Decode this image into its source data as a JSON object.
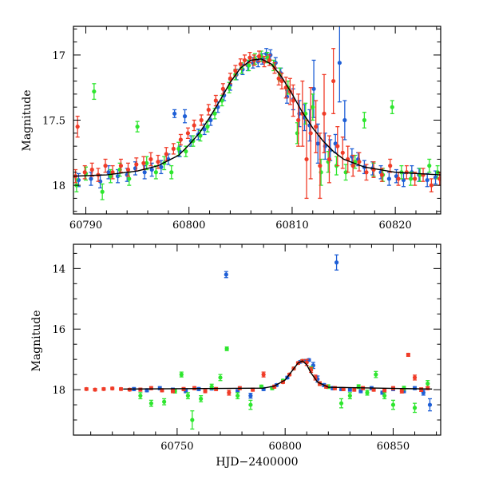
{
  "chart_data": [
    {
      "type": "scatter",
      "panel": "top",
      "ylabel": "Magnitude",
      "xlabel": "",
      "xlim": [
        60788.8,
        60824.4
      ],
      "ylim": [
        18.22,
        16.78
      ],
      "y_inverted": true,
      "x_ticks": [
        60790,
        60800,
        60810,
        60820
      ],
      "x_tick_labels": [
        "60790",
        "60800",
        "60810",
        "60820"
      ],
      "y_ticks": [
        17,
        17.5,
        18
      ],
      "y_tick_labels": [
        "17",
        "17.5",
        "18"
      ],
      "grid": false,
      "legend": "none",
      "model_curve": {
        "color": "#000000",
        "x": [
          60788.8,
          60792,
          60795,
          60797,
          60799,
          60800,
          60801,
          60802,
          60803,
          60804,
          60805,
          60806,
          60807,
          60808,
          60809,
          60810,
          60811,
          60812,
          60813,
          60814,
          60815,
          60817,
          60820,
          60824.4
        ],
        "y": [
          17.93,
          17.92,
          17.89,
          17.85,
          17.77,
          17.69,
          17.6,
          17.48,
          17.35,
          17.21,
          17.1,
          17.04,
          17.03,
          17.07,
          17.17,
          17.3,
          17.44,
          17.56,
          17.66,
          17.74,
          17.8,
          17.86,
          17.9,
          17.92
        ]
      },
      "series": [
        {
          "color": "#1f5fd6",
          "x": [
            60789.3,
            60790.5,
            60791.4,
            60792.2,
            60793.1,
            60794.0,
            60794.8,
            60795.7,
            60796.4,
            60797.3,
            60798.0,
            60798.6,
            60799.1,
            60799.6,
            60800.2,
            60800.9,
            60801.5,
            60802.1,
            60802.8,
            60803.4,
            60804.0,
            60804.6,
            60805.2,
            60805.7,
            60806.2,
            60806.7,
            60807.1,
            60807.5,
            60807.9,
            60808.4,
            60808.9,
            60809.5,
            60810.1,
            60810.7,
            60811.2,
            60811.7,
            60812.1,
            60812.5,
            60813.2,
            60813.7,
            60814.2,
            60814.6,
            60815.1,
            60815.8,
            60816.4,
            60817.0,
            60817.8,
            60818.6,
            60819.4,
            60820.1,
            60820.8,
            60821.6,
            60822.3,
            60823.1,
            60823.9
          ],
          "y": [
            17.96,
            17.95,
            17.97,
            17.9,
            17.93,
            17.92,
            17.87,
            17.9,
            17.88,
            17.86,
            17.8,
            17.45,
            17.74,
            17.47,
            17.66,
            17.61,
            17.57,
            17.5,
            17.4,
            17.31,
            17.23,
            17.15,
            17.11,
            17.08,
            17.06,
            17.05,
            17.03,
            16.99,
            17.0,
            17.06,
            17.14,
            17.32,
            17.34,
            17.45,
            17.48,
            17.54,
            17.26,
            17.68,
            17.7,
            17.73,
            17.68,
            17.06,
            17.5,
            17.78,
            17.8,
            17.86,
            17.87,
            17.9,
            17.95,
            17.93,
            17.96,
            17.9,
            17.92,
            17.96,
            17.94
          ],
          "yerr": [
            0.05,
            0.05,
            0.05,
            0.05,
            0.05,
            0.05,
            0.05,
            0.05,
            0.05,
            0.05,
            0.04,
            0.03,
            0.04,
            0.05,
            0.04,
            0.04,
            0.04,
            0.04,
            0.04,
            0.04,
            0.04,
            0.04,
            0.04,
            0.04,
            0.04,
            0.04,
            0.04,
            0.04,
            0.04,
            0.04,
            0.04,
            0.05,
            0.08,
            0.1,
            0.1,
            0.12,
            0.22,
            0.15,
            0.1,
            0.08,
            0.07,
            0.3,
            0.15,
            0.06,
            0.05,
            0.05,
            0.05,
            0.05,
            0.05,
            0.05,
            0.05,
            0.05,
            0.05,
            0.05,
            0.05
          ]
        },
        {
          "color": "#2ee62e",
          "x": [
            60789.1,
            60790.0,
            60790.8,
            60791.6,
            60792.4,
            60793.3,
            60794.2,
            60795.0,
            60795.9,
            60796.8,
            60797.6,
            60798.3,
            60799.0,
            60799.7,
            60800.4,
            60801.1,
            60801.8,
            60802.5,
            60803.2,
            60803.9,
            60804.5,
            60805.1,
            60805.8,
            60806.4,
            60807.0,
            60807.6,
            60808.2,
            60808.8,
            60809.6,
            60810.5,
            60811.3,
            60812.0,
            60812.8,
            60813.5,
            60814.3,
            60815.2,
            60816.1,
            60817.0,
            60817.9,
            60818.8,
            60819.7,
            60820.6,
            60821.5,
            60822.4,
            60823.3,
            60824.1
          ],
          "y": [
            18.0,
            17.91,
            17.28,
            18.05,
            17.93,
            17.88,
            17.95,
            17.55,
            17.83,
            17.9,
            17.83,
            17.9,
            17.72,
            17.74,
            17.66,
            17.62,
            17.55,
            17.45,
            17.35,
            17.25,
            17.15,
            17.1,
            17.08,
            17.03,
            17.01,
            17.02,
            17.08,
            17.15,
            17.25,
            17.6,
            17.45,
            17.4,
            17.9,
            17.82,
            17.85,
            17.9,
            17.82,
            17.5,
            17.88,
            17.92,
            17.4,
            17.9,
            17.95,
            17.92,
            17.85,
            17.9
          ],
          "yerr": [
            0.05,
            0.05,
            0.06,
            0.06,
            0.05,
            0.05,
            0.05,
            0.04,
            0.05,
            0.05,
            0.05,
            0.05,
            0.05,
            0.04,
            0.04,
            0.04,
            0.04,
            0.04,
            0.04,
            0.04,
            0.04,
            0.04,
            0.04,
            0.04,
            0.04,
            0.04,
            0.04,
            0.05,
            0.05,
            0.08,
            0.08,
            0.1,
            0.1,
            0.08,
            0.07,
            0.06,
            0.05,
            0.06,
            0.05,
            0.05,
            0.05,
            0.05,
            0.05,
            0.05,
            0.05,
            0.05
          ]
        },
        {
          "color": "#f03c28",
          "x": [
            60789.0,
            60789.2,
            60789.9,
            60790.6,
            60791.2,
            60791.9,
            60792.6,
            60793.4,
            60794.1,
            60794.9,
            60795.6,
            60796.3,
            60797.0,
            60797.8,
            60798.5,
            60799.2,
            60799.9,
            60800.5,
            60801.2,
            60801.9,
            60802.6,
            60803.3,
            60804.0,
            60804.5,
            60805.0,
            60805.4,
            60805.9,
            60806.3,
            60806.8,
            60807.3,
            60807.8,
            60808.3,
            60808.7,
            60809.0,
            60809.4,
            60809.8,
            60810.1,
            60810.6,
            60811.0,
            60811.4,
            60811.8,
            60812.3,
            60812.7,
            60813.1,
            60813.6,
            60814.0,
            60814.4,
            60814.9,
            60815.4,
            60815.9,
            60816.5,
            60817.2,
            60817.9,
            60818.7,
            60819.5,
            60820.3,
            60821.1,
            60821.9,
            60822.7,
            60823.5,
            60824.3
          ],
          "y": [
            17.93,
            17.55,
            17.9,
            17.88,
            17.92,
            17.85,
            17.9,
            17.85,
            17.88,
            17.84,
            17.83,
            17.8,
            17.82,
            17.76,
            17.72,
            17.65,
            17.6,
            17.54,
            17.5,
            17.42,
            17.35,
            17.26,
            17.18,
            17.12,
            17.07,
            17.04,
            17.02,
            17.04,
            17.01,
            17.05,
            17.04,
            17.1,
            17.18,
            17.2,
            17.25,
            17.28,
            17.35,
            17.5,
            17.45,
            17.8,
            17.6,
            17.55,
            17.85,
            17.45,
            17.8,
            17.2,
            17.7,
            17.75,
            17.8,
            17.85,
            17.82,
            17.9,
            17.88,
            17.92,
            17.85,
            17.95,
            17.9,
            17.95,
            17.92,
            18.0,
            17.95
          ],
          "yerr": [
            0.05,
            0.08,
            0.05,
            0.05,
            0.05,
            0.05,
            0.05,
            0.05,
            0.05,
            0.05,
            0.05,
            0.05,
            0.05,
            0.05,
            0.04,
            0.04,
            0.04,
            0.04,
            0.04,
            0.04,
            0.04,
            0.04,
            0.04,
            0.04,
            0.04,
            0.04,
            0.04,
            0.04,
            0.04,
            0.04,
            0.04,
            0.04,
            0.05,
            0.06,
            0.08,
            0.1,
            0.12,
            0.2,
            0.25,
            0.3,
            0.35,
            0.2,
            0.25,
            0.3,
            0.18,
            0.25,
            0.15,
            0.12,
            0.1,
            0.08,
            0.07,
            0.06,
            0.06,
            0.05,
            0.05,
            0.05,
            0.05,
            0.05,
            0.05,
            0.05,
            0.05
          ]
        }
      ]
    },
    {
      "type": "scatter",
      "panel": "bottom",
      "ylabel": "Magnitude",
      "xlabel": "HJD−2400000",
      "xlim": [
        60702,
        60872
      ],
      "ylim": [
        19.5,
        13.2
      ],
      "y_inverted": true,
      "x_ticks": [
        60750,
        60800,
        60850
      ],
      "x_tick_labels": [
        "60750",
        "60800",
        "60850"
      ],
      "y_ticks": [
        14,
        16,
        18
      ],
      "y_tick_labels": [
        "14",
        "16",
        "18"
      ],
      "grid": false,
      "legend": "none",
      "model_curve": {
        "color": "#000000",
        "x": [
          60725,
          60790,
          60795,
          60800,
          60803,
          60806,
          60808,
          60810,
          60812,
          60815,
          60820,
          60868
        ],
        "y": [
          17.98,
          17.95,
          17.88,
          17.68,
          17.4,
          17.12,
          17.05,
          17.18,
          17.45,
          17.75,
          17.92,
          17.98
        ]
      },
      "series": [
        {
          "color": "#1f5fd6",
          "x": [
            60730,
            60736,
            60742,
            60748,
            60754,
            60760,
            60766,
            60772.7,
            60778,
            60784,
            60790,
            60796,
            60801,
            60804,
            60807,
            60809,
            60811,
            60813,
            60815,
            60818,
            60822,
            60823.8,
            60826,
            60830,
            60835,
            60840,
            60845,
            60850,
            60855,
            60860,
            60864,
            60867
          ],
          "y": [
            17.98,
            18.02,
            17.95,
            18.0,
            18.05,
            17.98,
            17.96,
            14.2,
            18.05,
            18.2,
            17.98,
            17.85,
            17.6,
            17.3,
            17.08,
            17.05,
            17.02,
            17.2,
            17.65,
            17.85,
            17.95,
            13.8,
            17.98,
            18.0,
            18.05,
            17.95,
            18.1,
            17.98,
            18.05,
            17.95,
            18.1,
            18.5
          ],
          "yerr": [
            0.05,
            0.05,
            0.05,
            0.05,
            0.05,
            0.05,
            0.05,
            0.1,
            0.05,
            0.08,
            0.05,
            0.04,
            0.04,
            0.04,
            0.04,
            0.04,
            0.04,
            0.1,
            0.1,
            0.05,
            0.05,
            0.25,
            0.05,
            0.05,
            0.05,
            0.05,
            0.05,
            0.05,
            0.05,
            0.05,
            0.08,
            0.2
          ]
        },
        {
          "color": "#2ee62e",
          "x": [
            60733,
            60738,
            60744,
            60749,
            60752,
            60755,
            60757,
            60761,
            60766,
            60770,
            60773,
            60778,
            60784,
            60789,
            60794,
            60799,
            60804,
            60808,
            60812,
            60816,
            60820,
            60826,
            60830,
            60834,
            60838,
            60842,
            60846,
            60850,
            60855,
            60860,
            60866
          ],
          "y": [
            18.2,
            18.45,
            18.4,
            18.05,
            17.5,
            18.2,
            19.0,
            18.3,
            17.9,
            17.6,
            16.65,
            18.2,
            18.5,
            17.9,
            17.95,
            17.7,
            17.3,
            17.05,
            17.3,
            17.8,
            17.9,
            18.45,
            18.2,
            17.9,
            18.1,
            17.5,
            18.2,
            18.5,
            17.95,
            18.6,
            17.8
          ],
          "yerr": [
            0.1,
            0.1,
            0.1,
            0.06,
            0.08,
            0.1,
            0.3,
            0.1,
            0.08,
            0.1,
            0.06,
            0.1,
            0.15,
            0.05,
            0.05,
            0.04,
            0.04,
            0.04,
            0.06,
            0.06,
            0.06,
            0.15,
            0.1,
            0.06,
            0.08,
            0.1,
            0.1,
            0.15,
            0.06,
            0.15,
            0.1
          ]
        },
        {
          "color": "#f03c28",
          "x": [
            60708,
            60712,
            60716,
            60720,
            60724,
            60728,
            60733,
            60738,
            60743,
            60748,
            60753,
            60758,
            60763,
            60768,
            60774,
            60779,
            60785,
            60790,
            60795,
            60799,
            60802,
            60804,
            60806,
            60808,
            60810,
            60812,
            60814,
            60816,
            60819,
            60823,
            60827,
            60832,
            60836,
            60841,
            60846,
            60850,
            60854,
            60857,
            60860,
            60863,
            60866
          ],
          "y": [
            17.98,
            18.0,
            17.98,
            17.96,
            17.98,
            18.0,
            18.0,
            17.95,
            18.02,
            18.05,
            17.98,
            17.95,
            18.05,
            17.98,
            18.1,
            17.95,
            18.0,
            17.5,
            17.9,
            17.75,
            17.5,
            17.3,
            17.12,
            17.05,
            17.1,
            17.35,
            17.6,
            17.8,
            17.9,
            17.95,
            17.98,
            18.0,
            17.95,
            18.0,
            18.02,
            17.95,
            18.05,
            16.85,
            17.6,
            18.0,
            17.95
          ],
          "yerr": [
            0.04,
            0.04,
            0.04,
            0.04,
            0.04,
            0.04,
            0.05,
            0.05,
            0.05,
            0.05,
            0.05,
            0.05,
            0.05,
            0.05,
            0.08,
            0.05,
            0.05,
            0.08,
            0.05,
            0.04,
            0.04,
            0.04,
            0.04,
            0.04,
            0.1,
            0.08,
            0.08,
            0.06,
            0.05,
            0.05,
            0.05,
            0.05,
            0.05,
            0.05,
            0.05,
            0.05,
            0.06,
            0.05,
            0.08,
            0.06,
            0.05
          ]
        }
      ]
    }
  ]
}
